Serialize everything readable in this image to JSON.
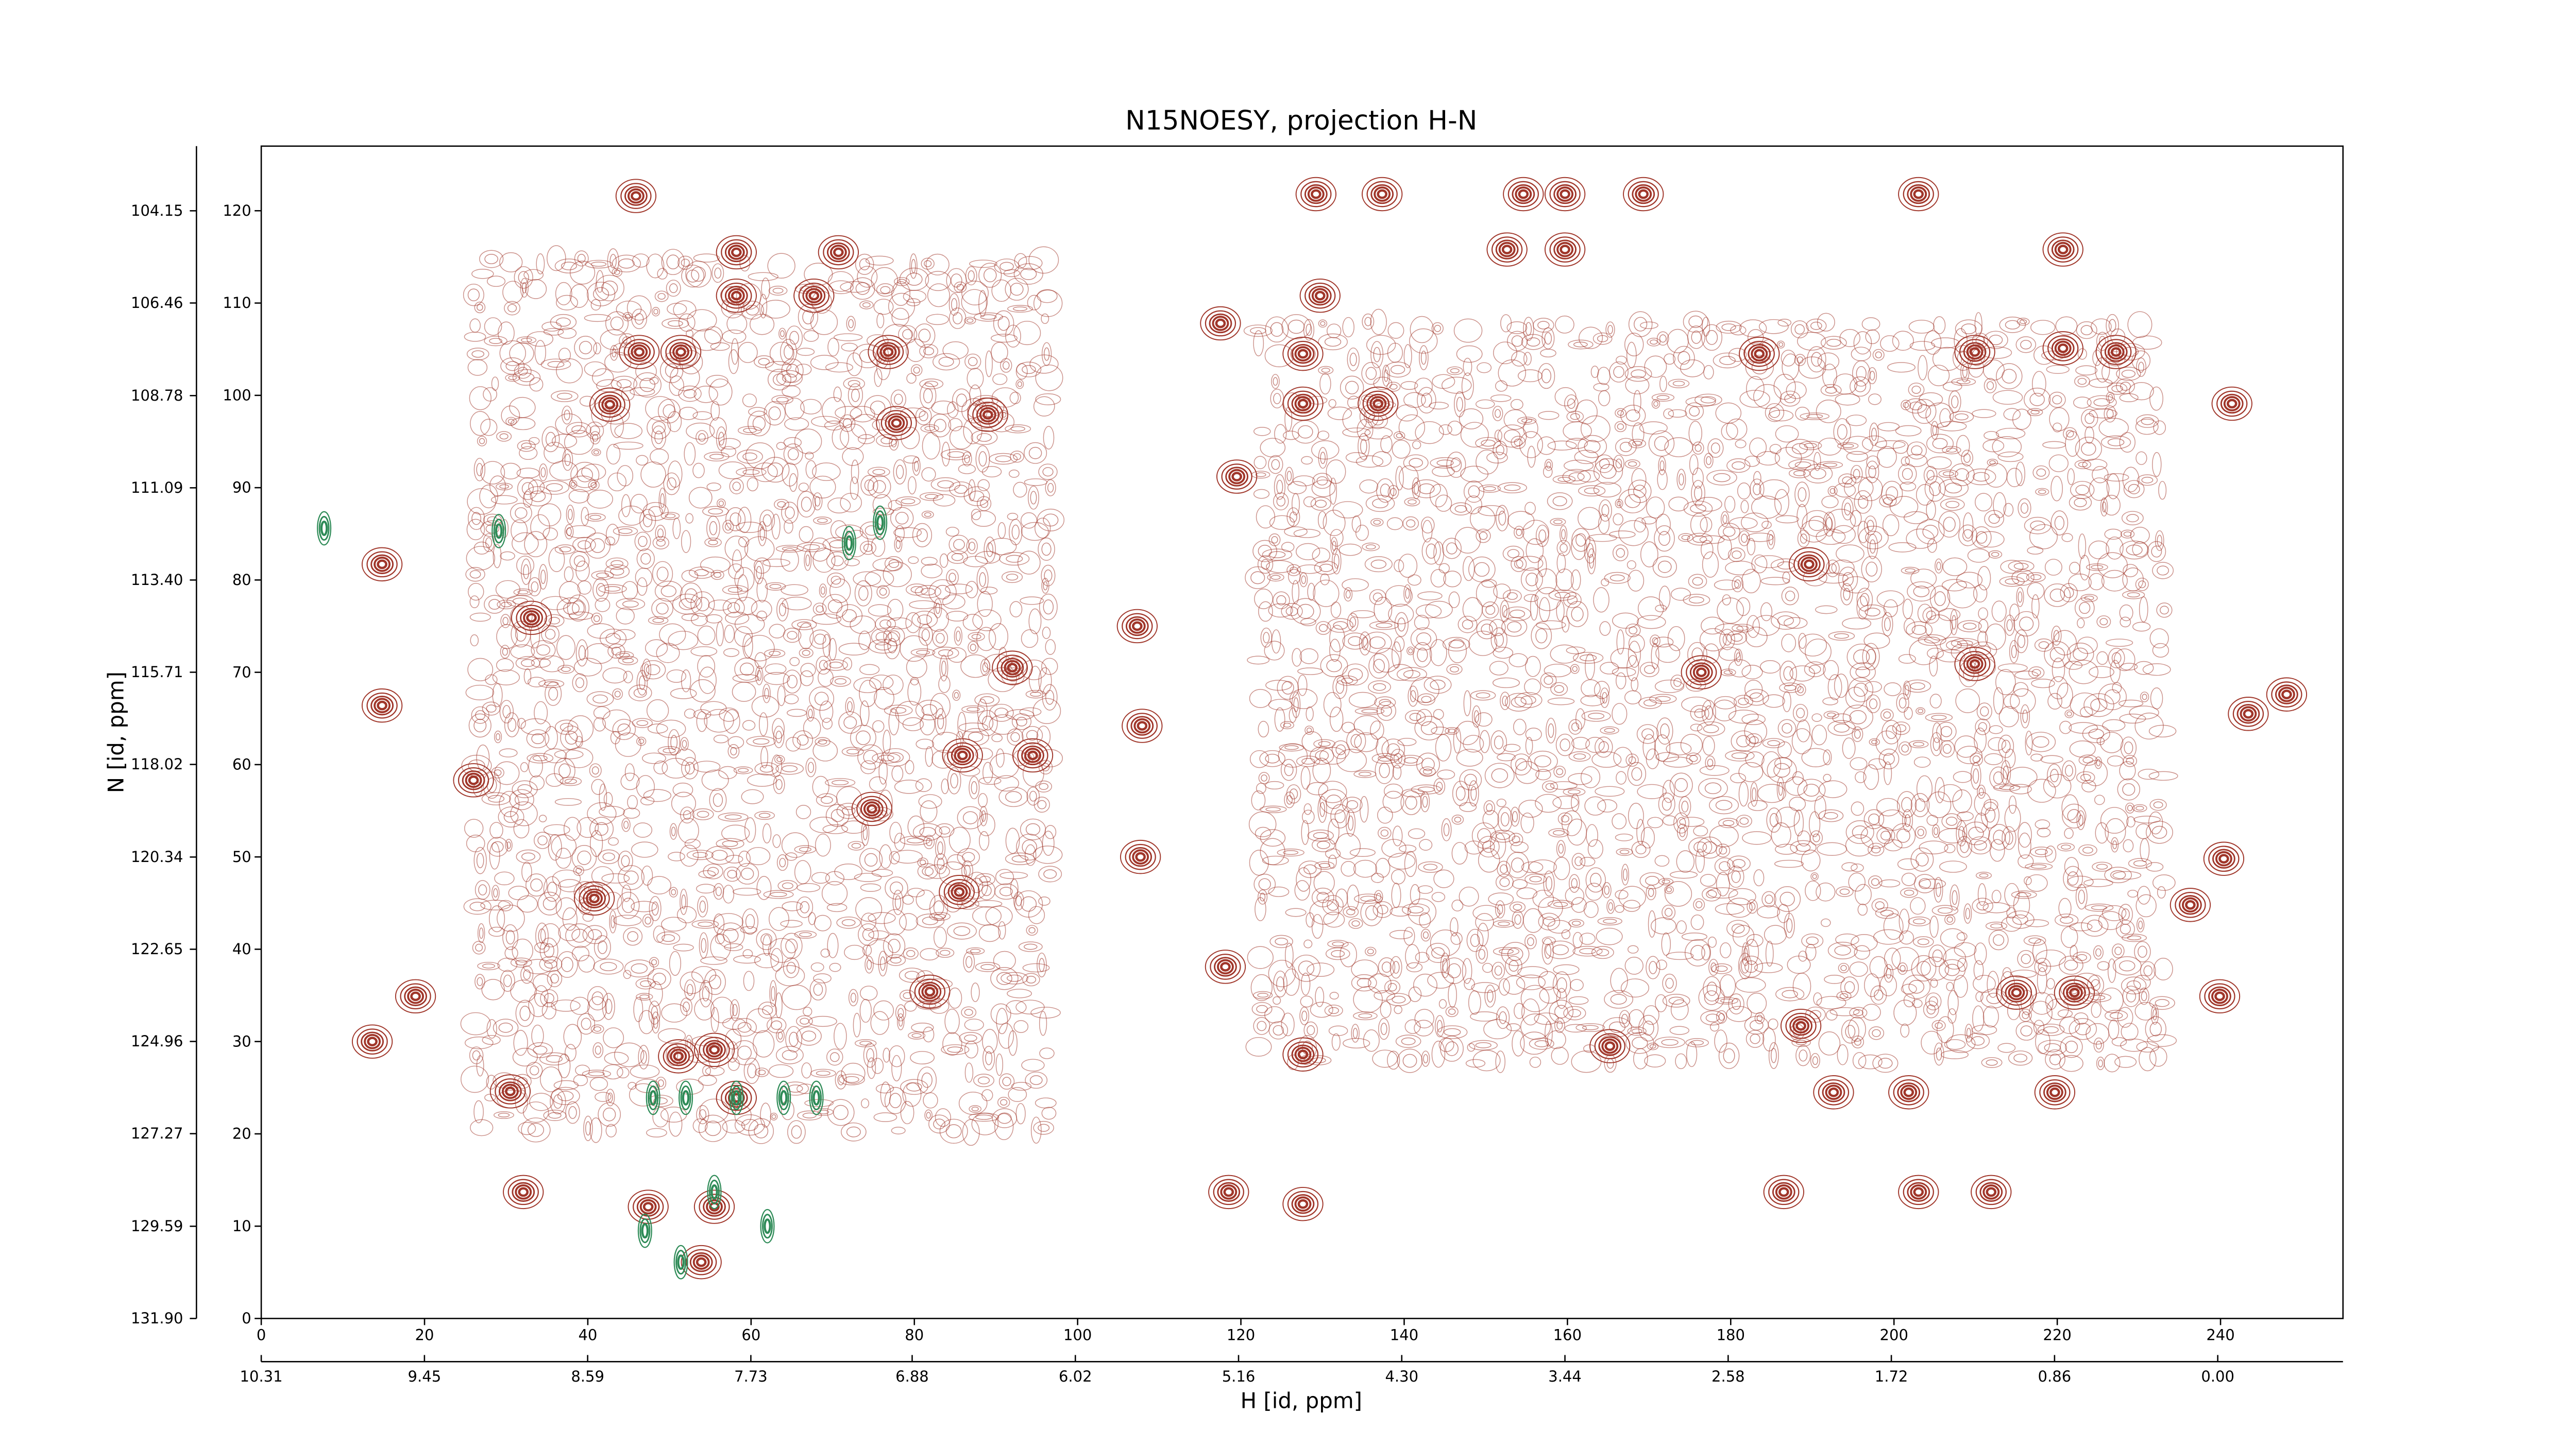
{
  "chart_data": {
    "type": "contour",
    "title": "N15NOESY, projection H-N",
    "xlabel": "H [id, ppm]",
    "ylabel": "N [id, ppm]",
    "xlim": [
      0,
      255
    ],
    "ylim": [
      0,
      127
    ],
    "xticks": [
      0,
      20,
      40,
      60,
      80,
      100,
      120,
      140,
      160,
      180,
      200,
      220,
      240
    ],
    "yticks": [
      0,
      10,
      20,
      30,
      40,
      50,
      60,
      70,
      80,
      90,
      100,
      110,
      120
    ],
    "x2lim": [
      10.31,
      -0.66
    ],
    "x2ticks": [
      10.31,
      9.45,
      8.59,
      7.73,
      6.88,
      6.02,
      5.16,
      {
        "value": 4.3,
        "label": "4.30"
      },
      3.44,
      2.58,
      1.72,
      0.86,
      {
        "value": 0,
        "label": "0.00"
      }
    ],
    "y2lim": [
      131.9,
      102.53
    ],
    "y2ticks": [
      {
        "value": 131.9,
        "label": "131.90"
      },
      129.59,
      127.27,
      124.96,
      122.65,
      120.34,
      118.02,
      115.71,
      {
        "value": 113.4,
        "label": "113.40"
      },
      111.09,
      108.78,
      106.46,
      104.15
    ],
    "regions": [
      [
        26,
        96,
        20,
        115
      ],
      [
        122,
        233,
        28,
        108
      ]
    ],
    "positive": {
      "color": "#a0362a",
      "x": [
        45.9,
        58.2,
        70.7,
        58.2,
        67.7,
        46.3,
        51.4,
        76.8,
        42.7,
        89.0,
        77.8,
        14.8,
        33.1,
        92.0,
        107.3,
        14.8,
        107.9,
        26.0,
        85.9,
        94.5,
        74.8,
        107.7,
        40.8,
        85.5,
        18.9,
        81.9,
        13.6,
        30.5,
        51.1,
        55.5,
        58.2,
        32.1,
        47.4,
        55.5,
        53.9,
        129.2,
        137.3,
        154.6,
        159.7,
        169.3,
        203.0,
        129.7,
        152.6,
        159.7,
        220.7,
        117.5,
        127.6,
        183.5,
        209.9,
        220.7,
        227.2,
        127.6,
        136.8,
        241.4,
        119.5,
        189.6,
        176.4,
        209.9,
        248.1,
        243.4,
        240.4,
        236.3,
        118.1,
        239.9,
        215.0,
        222.1,
        165.2,
        127.6,
        188.6,
        201.8,
        219.7,
        192.6,
        127.6,
        118.5,
        211.9,
        186.5,
        203.0
      ],
      "y": [
        121.6,
        115.5,
        115.5,
        110.8,
        110.8,
        104.7,
        104.7,
        104.7,
        99.0,
        97.9,
        97.0,
        81.7,
        75.9,
        70.5,
        75.0,
        66.4,
        64.2,
        58.3,
        61.0,
        61.0,
        55.2,
        50.0,
        45.5,
        46.2,
        34.9,
        35.4,
        30.0,
        24.6,
        28.4,
        29.1,
        23.9,
        13.7,
        12.1,
        12.1,
        6.1,
        121.8,
        121.8,
        121.8,
        121.8,
        121.8,
        121.8,
        110.8,
        115.8,
        115.8,
        115.8,
        107.8,
        104.5,
        104.5,
        104.7,
        105.1,
        104.7,
        99.1,
        99.1,
        99.1,
        91.2,
        81.7,
        70.0,
        70.9,
        67.6,
        65.5,
        49.8,
        44.8,
        38.1,
        34.9,
        35.3,
        35.3,
        29.5,
        28.6,
        31.7,
        24.5,
        24.5,
        24.5,
        12.4,
        13.7,
        13.7,
        13.7,
        13.7
      ]
    },
    "negative": {
      "color": "#2e8b57",
      "x": [
        58.2,
        48.0,
        52.0,
        64.0,
        68.0,
        55.5,
        75.8,
        72.0,
        29.1,
        7.7,
        51.4,
        47.0,
        62.0
      ],
      "y": [
        23.9,
        23.9,
        23.9,
        23.9,
        23.9,
        13.7,
        86.2,
        84.0,
        85.3,
        85.6,
        6.1,
        9.5,
        10.0
      ]
    }
  }
}
